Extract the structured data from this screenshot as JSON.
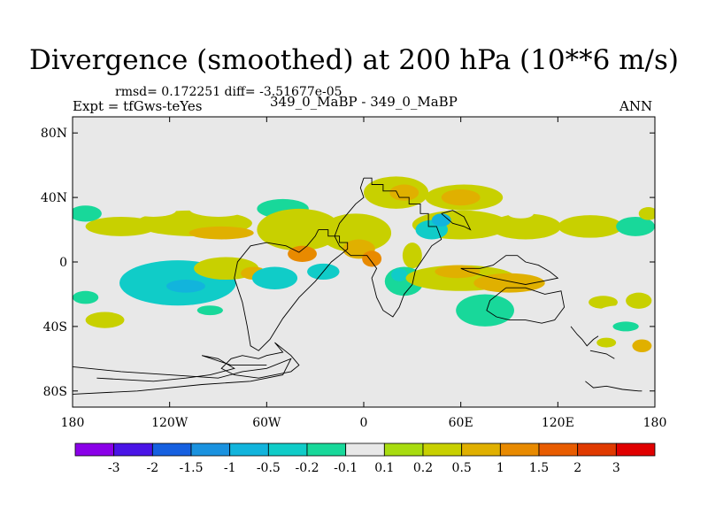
{
  "chart_data": {
    "type": "heatmap",
    "title": "Divergence (smoothed) at 200 hPa (10**6 m/s)",
    "stats_line": "rmsd= 0.172251 diff= -3.51677e-05",
    "experiment": "Expt = tfGws-teYes",
    "case": "349_0_MaBP - 349_0_MaBP",
    "season": "ANN",
    "xlim": [
      -180,
      180
    ],
    "ylim": [
      -90,
      90
    ],
    "x_ticks": [
      {
        "value": -180,
        "label": "180"
      },
      {
        "value": -120,
        "label": "120W"
      },
      {
        "value": -60,
        "label": "60W"
      },
      {
        "value": 0,
        "label": "0"
      },
      {
        "value": 60,
        "label": "60E"
      },
      {
        "value": 120,
        "label": "120E"
      },
      {
        "value": 180,
        "label": "180"
      }
    ],
    "y_ticks": [
      {
        "value": 80,
        "label": "80N"
      },
      {
        "value": 40,
        "label": "40N"
      },
      {
        "value": 0,
        "label": "0"
      },
      {
        "value": -40,
        "label": "40S"
      },
      {
        "value": -80,
        "label": "80S"
      }
    ],
    "colorbar": {
      "labels": [
        "-3",
        "-2",
        "-1.5",
        "-1",
        "-0.5",
        "-0.2",
        "-0.1",
        "0.1",
        "0.2",
        "0.5",
        "1",
        "1.5",
        "2",
        "3"
      ],
      "colors": [
        "#8a00e8",
        "#4a14e6",
        "#1660e0",
        "#1a92df",
        "#12b4dc",
        "#10ccc8",
        "#18d89a",
        "#e8e8e8",
        "#a8dc10",
        "#c8d000",
        "#e0b000",
        "#e88a00",
        "#e85c00",
        "#e03a00",
        "#e00000"
      ]
    },
    "background_color": "#e8e8e8",
    "blobs": [
      {
        "lon": -105,
        "lat": 24,
        "rx": 36,
        "ry": 8,
        "v": 0.2
      },
      {
        "lon": -88,
        "lat": 18,
        "rx": 20,
        "ry": 4,
        "v": 0.5
      },
      {
        "lon": -150,
        "lat": 22,
        "rx": 22,
        "ry": 6,
        "v": 0.2
      },
      {
        "lon": -172,
        "lat": 30,
        "rx": 10,
        "ry": 5,
        "v": -0.2
      },
      {
        "lon": -130,
        "lat": 32,
        "rx": 14,
        "ry": 4,
        "v": -0.1
      },
      {
        "lon": -90,
        "lat": 33,
        "rx": 18,
        "ry": 5,
        "v": -0.1
      },
      {
        "lon": -70,
        "lat": 38,
        "rx": 12,
        "ry": 4,
        "v": -0.1
      },
      {
        "lon": -50,
        "lat": 33,
        "rx": 16,
        "ry": 6,
        "v": -0.2
      },
      {
        "lon": -140,
        "lat": 48,
        "rx": 10,
        "ry": 4,
        "v": -0.1
      },
      {
        "lon": -105,
        "lat": 53,
        "rx": 8,
        "ry": 3,
        "v": -0.1
      },
      {
        "lon": -78,
        "lat": 55,
        "rx": 12,
        "ry": 3,
        "v": -0.1
      },
      {
        "lon": -55,
        "lat": 45,
        "rx": 5,
        "ry": 3,
        "v": -0.1
      },
      {
        "lon": -40,
        "lat": 20,
        "rx": 26,
        "ry": 13,
        "v": 0.2
      },
      {
        "lon": -38,
        "lat": 5,
        "rx": 9,
        "ry": 5,
        "v": 1
      },
      {
        "lon": -5,
        "lat": 18,
        "rx": 22,
        "ry": 12,
        "v": 0.2
      },
      {
        "lon": -3,
        "lat": 8,
        "rx": 10,
        "ry": 6,
        "v": 0.5
      },
      {
        "lon": 5,
        "lat": 2,
        "rx": 6,
        "ry": 5,
        "v": 1
      },
      {
        "lon": 20,
        "lat": 43,
        "rx": 20,
        "ry": 10,
        "v": 0.2
      },
      {
        "lon": 25,
        "lat": 43,
        "rx": 9,
        "ry": 5,
        "v": 0.5
      },
      {
        "lon": 62,
        "lat": 40,
        "rx": 24,
        "ry": 8,
        "v": 0.2
      },
      {
        "lon": 60,
        "lat": 40,
        "rx": 12,
        "ry": 5,
        "v": 0.5
      },
      {
        "lon": 60,
        "lat": 23,
        "rx": 30,
        "ry": 9,
        "v": 0.2
      },
      {
        "lon": 100,
        "lat": 22,
        "rx": 22,
        "ry": 8,
        "v": 0.2
      },
      {
        "lon": 140,
        "lat": 22,
        "rx": 20,
        "ry": 7,
        "v": 0.2
      },
      {
        "lon": 168,
        "lat": 22,
        "rx": 12,
        "ry": 6,
        "v": -0.2
      },
      {
        "lon": 176,
        "lat": 30,
        "rx": 6,
        "ry": 4,
        "v": 0.2
      },
      {
        "lon": 145,
        "lat": 40,
        "rx": 16,
        "ry": 6,
        "v": -0.1
      },
      {
        "lon": 97,
        "lat": 30,
        "rx": 8,
        "ry": 3,
        "v": -0.1
      },
      {
        "lon": 112,
        "lat": 33,
        "rx": 8,
        "ry": 3,
        "v": -0.1
      },
      {
        "lon": 42,
        "lat": 20,
        "rx": 10,
        "ry": 6,
        "v": -0.5
      },
      {
        "lon": 48,
        "lat": 26,
        "rx": 6,
        "ry": 4,
        "v": -1
      },
      {
        "lon": 30,
        "lat": 4,
        "rx": 6,
        "ry": 8,
        "v": 0.2
      },
      {
        "lon": -150,
        "lat": -10,
        "rx": 22,
        "ry": 7,
        "v": -0.1
      },
      {
        "lon": -115,
        "lat": -13,
        "rx": 36,
        "ry": 14,
        "v": -0.5
      },
      {
        "lon": -110,
        "lat": -15,
        "rx": 12,
        "ry": 4,
        "v": -1
      },
      {
        "lon": -85,
        "lat": -4,
        "rx": 20,
        "ry": 7,
        "v": 0.2
      },
      {
        "lon": -68,
        "lat": -7,
        "rx": 8,
        "ry": 4,
        "v": 0.5
      },
      {
        "lon": -55,
        "lat": -10,
        "rx": 14,
        "ry": 7,
        "v": -0.5
      },
      {
        "lon": -25,
        "lat": -6,
        "rx": 10,
        "ry": 5,
        "v": -0.5
      },
      {
        "lon": 25,
        "lat": -12,
        "rx": 12,
        "ry": 9,
        "v": -0.2
      },
      {
        "lon": 22,
        "lat": -8,
        "rx": 5,
        "ry": 4,
        "v": -0.5
      },
      {
        "lon": 60,
        "lat": -10,
        "rx": 34,
        "ry": 8,
        "v": 0.2
      },
      {
        "lon": 58,
        "lat": -6,
        "rx": 14,
        "ry": 4,
        "v": 0.5
      },
      {
        "lon": 90,
        "lat": -13,
        "rx": 22,
        "ry": 6,
        "v": 0.5
      },
      {
        "lon": 75,
        "lat": -30,
        "rx": 18,
        "ry": 10,
        "v": -0.2
      },
      {
        "lon": 135,
        "lat": -28,
        "rx": 8,
        "ry": 5,
        "v": -0.1
      },
      {
        "lon": 148,
        "lat": -25,
        "rx": 9,
        "ry": 4,
        "v": 0.2
      },
      {
        "lon": 158,
        "lat": -32,
        "rx": 14,
        "ry": 5,
        "v": -0.1
      },
      {
        "lon": 170,
        "lat": -24,
        "rx": 8,
        "ry": 5,
        "v": 0.2
      },
      {
        "lon": -172,
        "lat": -22,
        "rx": 8,
        "ry": 4,
        "v": -0.2
      },
      {
        "lon": -160,
        "lat": -36,
        "rx": 12,
        "ry": 5,
        "v": 0.2
      },
      {
        "lon": -95,
        "lat": -30,
        "rx": 8,
        "ry": 3,
        "v": -0.2
      },
      {
        "lon": 150,
        "lat": -50,
        "rx": 6,
        "ry": 3,
        "v": 0.2
      },
      {
        "lon": 172,
        "lat": -52,
        "rx": 6,
        "ry": 4,
        "v": 0.5
      },
      {
        "lon": 162,
        "lat": -40,
        "rx": 8,
        "ry": 3,
        "v": -0.2
      }
    ],
    "coastlines": [
      [
        [
          0,
          52
        ],
        [
          5,
          52
        ],
        [
          5,
          48
        ],
        [
          12,
          48
        ],
        [
          12,
          44
        ],
        [
          20,
          44
        ],
        [
          22,
          40
        ],
        [
          28,
          40
        ],
        [
          28,
          36
        ],
        [
          35,
          36
        ],
        [
          35,
          30
        ],
        [
          40,
          30
        ],
        [
          40,
          22
        ],
        [
          45,
          22
        ],
        [
          48,
          14
        ],
        [
          42,
          10
        ],
        [
          38,
          4
        ],
        [
          32,
          -5
        ],
        [
          30,
          -14
        ],
        [
          25,
          -20
        ],
        [
          22,
          -28
        ],
        [
          18,
          -34
        ],
        [
          12,
          -30
        ],
        [
          8,
          -22
        ],
        [
          5,
          -10
        ],
        [
          8,
          -4
        ],
        [
          2,
          4
        ],
        [
          -8,
          4
        ],
        [
          -15,
          10
        ],
        [
          -18,
          16
        ],
        [
          -15,
          24
        ],
        [
          -10,
          30
        ],
        [
          -5,
          36
        ],
        [
          0,
          40
        ],
        [
          -2,
          46
        ],
        [
          0,
          52
        ]
      ],
      [
        [
          48,
          30
        ],
        [
          55,
          24
        ],
        [
          62,
          22
        ],
        [
          66,
          20
        ],
        [
          62,
          28
        ],
        [
          55,
          32
        ],
        [
          48,
          30
        ]
      ],
      [
        [
          -28,
          20
        ],
        [
          -22,
          20
        ],
        [
          -22,
          16
        ],
        [
          -15,
          16
        ],
        [
          -15,
          12
        ],
        [
          -10,
          12
        ],
        [
          -10,
          8
        ],
        [
          -15,
          4
        ],
        [
          -20,
          0
        ],
        [
          -25,
          -6
        ],
        [
          -30,
          -12
        ],
        [
          -40,
          -22
        ],
        [
          -50,
          -35
        ],
        [
          -58,
          -48
        ],
        [
          -65,
          -55
        ],
        [
          -70,
          -52
        ],
        [
          -72,
          -40
        ],
        [
          -75,
          -25
        ],
        [
          -80,
          -10
        ],
        [
          -78,
          0
        ],
        [
          -70,
          10
        ],
        [
          -60,
          12
        ],
        [
          -48,
          10
        ],
        [
          -40,
          6
        ],
        [
          -35,
          10
        ],
        [
          -30,
          16
        ],
        [
          -28,
          20
        ]
      ],
      [
        [
          60,
          -4
        ],
        [
          72,
          -4
        ],
        [
          80,
          -2
        ],
        [
          88,
          4
        ],
        [
          95,
          4
        ],
        [
          100,
          0
        ],
        [
          108,
          -2
        ],
        [
          115,
          -6
        ],
        [
          120,
          -10
        ],
        [
          110,
          -12
        ],
        [
          100,
          -14
        ],
        [
          90,
          -12
        ],
        [
          80,
          -10
        ],
        [
          72,
          -8
        ],
        [
          65,
          -6
        ],
        [
          60,
          -4
        ]
      ],
      [
        [
          88,
          -16
        ],
        [
          100,
          -16
        ],
        [
          112,
          -20
        ],
        [
          122,
          -18
        ],
        [
          124,
          -28
        ],
        [
          118,
          -36
        ],
        [
          110,
          -38
        ],
        [
          100,
          -36
        ],
        [
          90,
          -36
        ],
        [
          82,
          -34
        ],
        [
          76,
          -30
        ],
        [
          78,
          -24
        ],
        [
          88,
          -16
        ]
      ],
      [
        [
          -180,
          -65
        ],
        [
          -150,
          -68
        ],
        [
          -120,
          -70
        ],
        [
          -90,
          -72
        ],
        [
          -75,
          -68
        ],
        [
          -60,
          -66
        ],
        [
          -45,
          -60
        ],
        [
          -50,
          -70
        ],
        [
          -70,
          -74
        ],
        [
          -100,
          -76
        ],
        [
          -140,
          -80
        ],
        [
          -180,
          -82
        ]
      ],
      [
        [
          -165,
          -72
        ],
        [
          -130,
          -74
        ],
        [
          -110,
          -72
        ],
        [
          -95,
          -70
        ],
        [
          -80,
          -66
        ],
        [
          -90,
          -60
        ],
        [
          -100,
          -58
        ],
        [
          -82,
          -64
        ],
        [
          -60,
          -64
        ]
      ],
      [
        [
          -55,
          -50
        ],
        [
          -50,
          -56
        ],
        [
          -60,
          -58
        ],
        [
          -65,
          -60
        ],
        [
          -75,
          -58
        ],
        [
          -82,
          -60
        ],
        [
          -88,
          -66
        ],
        [
          -80,
          -70
        ],
        [
          -65,
          -72
        ],
        [
          -55,
          -70
        ],
        [
          -45,
          -68
        ],
        [
          -40,
          -64
        ],
        [
          -45,
          -58
        ],
        [
          -55,
          -50
        ]
      ],
      [
        [
          137,
          -74
        ],
        [
          142,
          -78
        ],
        [
          150,
          -77
        ],
        [
          160,
          -79
        ],
        [
          170,
          -80
        ],
        [
          172,
          -80
        ]
      ],
      [
        [
          128,
          -40
        ],
        [
          132,
          -45
        ],
        [
          135,
          -48
        ],
        [
          138,
          -52
        ],
        [
          142,
          -48
        ],
        [
          145,
          -46
        ]
      ],
      [
        [
          140,
          -55
        ],
        [
          150,
          -57
        ],
        [
          155,
          -60
        ]
      ]
    ]
  }
}
